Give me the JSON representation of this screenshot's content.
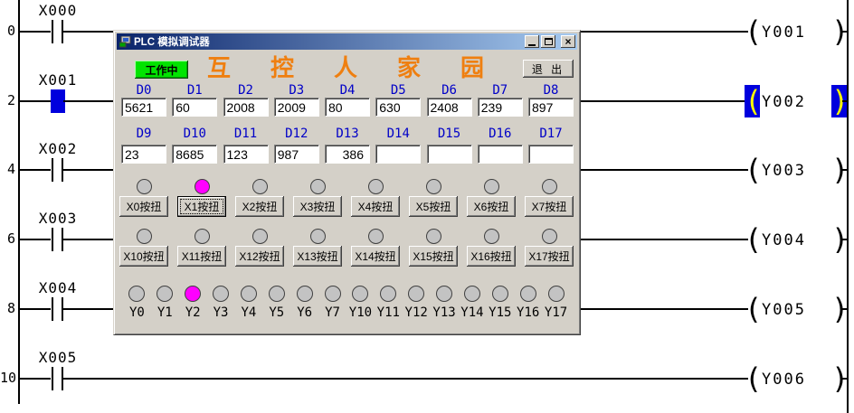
{
  "window": {
    "title": "PLC 模拟调试器",
    "status_label": "工作中",
    "exit_label": "退 出",
    "banner_chars": [
      "互",
      "控",
      "人",
      "家",
      "园"
    ],
    "icons": {
      "app": "computer-icon",
      "minimize": "_",
      "maximize": "□",
      "close": "×"
    }
  },
  "registers": {
    "row1": [
      {
        "label": "D0",
        "value": "5621"
      },
      {
        "label": "D1",
        "value": "60"
      },
      {
        "label": "D2",
        "value": "2008"
      },
      {
        "label": "D3",
        "value": "2009"
      },
      {
        "label": "D4",
        "value": "80"
      },
      {
        "label": "D5",
        "value": "630"
      },
      {
        "label": "D6",
        "value": "2408"
      },
      {
        "label": "D7",
        "value": "239"
      },
      {
        "label": "D8",
        "value": "897"
      }
    ],
    "row2": [
      {
        "label": "D9",
        "value": "23"
      },
      {
        "label": "D10",
        "value": "8685"
      },
      {
        "label": "D11",
        "value": "123"
      },
      {
        "label": "D12",
        "value": "987"
      },
      {
        "label": "D13",
        "value": "386",
        "align": "right"
      },
      {
        "label": "D14",
        "value": ""
      },
      {
        "label": "D15",
        "value": ""
      },
      {
        "label": "D16",
        "value": ""
      },
      {
        "label": "D17",
        "value": ""
      }
    ]
  },
  "x_inputs": {
    "group1": [
      {
        "button": "X0按扭",
        "lamp_on": false
      },
      {
        "button": "X1按扭",
        "lamp_on": true,
        "focused": true
      },
      {
        "button": "X2按扭",
        "lamp_on": false
      },
      {
        "button": "X3按扭",
        "lamp_on": false
      },
      {
        "button": "X4按扭",
        "lamp_on": false
      },
      {
        "button": "X5按扭",
        "lamp_on": false
      },
      {
        "button": "X6按扭",
        "lamp_on": false
      },
      {
        "button": "X7按扭",
        "lamp_on": false
      }
    ],
    "group2": [
      {
        "button": "X10按扭",
        "lamp_on": false
      },
      {
        "button": "X11按扭",
        "lamp_on": false
      },
      {
        "button": "X12按扭",
        "lamp_on": false
      },
      {
        "button": "X13按扭",
        "lamp_on": false
      },
      {
        "button": "X14按扭",
        "lamp_on": false
      },
      {
        "button": "X15按扭",
        "lamp_on": false
      },
      {
        "button": "X16按扭",
        "lamp_on": false
      },
      {
        "button": "X17按扭",
        "lamp_on": false
      }
    ]
  },
  "y_outputs": [
    {
      "label": "Y0",
      "on": false
    },
    {
      "label": "Y1",
      "on": false
    },
    {
      "label": "Y2",
      "on": true
    },
    {
      "label": "Y3",
      "on": false
    },
    {
      "label": "Y4",
      "on": false
    },
    {
      "label": "Y5",
      "on": false
    },
    {
      "label": "Y6",
      "on": false
    },
    {
      "label": "Y7",
      "on": false
    },
    {
      "label": "Y10",
      "on": false
    },
    {
      "label": "Y11",
      "on": false
    },
    {
      "label": "Y12",
      "on": false
    },
    {
      "label": "Y13",
      "on": false
    },
    {
      "label": "Y14",
      "on": false
    },
    {
      "label": "Y15",
      "on": false
    },
    {
      "label": "Y16",
      "on": false
    },
    {
      "label": "Y17",
      "on": false
    }
  ],
  "ladder": {
    "rows": [
      {
        "step": "0",
        "contact": "X000",
        "coil": "Y001",
        "contact_on": false,
        "coil_on": false
      },
      {
        "step": "2",
        "contact": "X001",
        "coil": "Y002",
        "contact_on": true,
        "coil_on": true
      },
      {
        "step": "4",
        "contact": "X002",
        "coil": "Y003",
        "contact_on": false,
        "coil_on": false
      },
      {
        "step": "6",
        "contact": "X003",
        "coil": "Y004",
        "contact_on": false,
        "coil_on": false
      },
      {
        "step": "8",
        "contact": "X004",
        "coil": "Y005",
        "contact_on": false,
        "coil_on": false
      },
      {
        "step": "10",
        "contact": "X005",
        "coil": "Y006",
        "contact_on": false,
        "coil_on": false
      }
    ]
  },
  "colors": {
    "lamp_on": "#FF00FF",
    "lamp_off": "#C3C3C3",
    "highlight_bg": "#0000DD",
    "highlight_fg": "#FFFF00",
    "banner": "#EF7F10",
    "register_label": "#0000C8",
    "status_bg": "#00E400",
    "titlebar_left": "#0A246A",
    "titlebar_right": "#A6CAF0"
  }
}
